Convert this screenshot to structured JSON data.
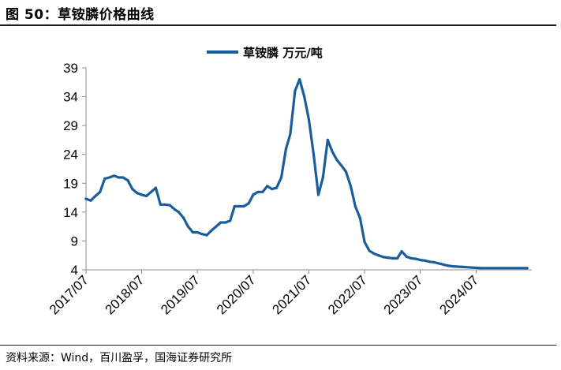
{
  "figure": {
    "title": "图 50：草铵膦价格曲线",
    "source": "资料来源：Wind，百川盈孚，国海证券研究所"
  },
  "colors": {
    "series": "#1a5d9a",
    "axis": "#8c8c8c",
    "rule": "#1b1b1b"
  },
  "chart_data": {
    "type": "line",
    "title": "",
    "xlabel": "",
    "ylabel": "",
    "ylim": [
      4,
      39
    ],
    "yticks": [
      4,
      9,
      14,
      19,
      24,
      29,
      34,
      39
    ],
    "xlim": [
      "2017-07-01",
      "2025-07-01"
    ],
    "xticks": [
      "2017/07",
      "2018/07",
      "2019/07",
      "2020/07",
      "2021/07",
      "2022/07",
      "2023/07",
      "2024/07"
    ],
    "grid": false,
    "legend_position": "top-center",
    "series": [
      {
        "name": "草铵膦 万元/吨",
        "x": [
          "2017-07-01",
          "2017-08-01",
          "2017-09-01",
          "2017-10-01",
          "2017-11-01",
          "2017-12-01",
          "2018-01-01",
          "2018-02-01",
          "2018-03-01",
          "2018-04-01",
          "2018-05-01",
          "2018-06-01",
          "2018-07-01",
          "2018-08-01",
          "2018-09-01",
          "2018-10-01",
          "2018-11-01",
          "2018-12-01",
          "2019-01-01",
          "2019-02-01",
          "2019-03-01",
          "2019-04-01",
          "2019-05-01",
          "2019-06-01",
          "2019-07-01",
          "2019-08-01",
          "2019-09-01",
          "2019-10-01",
          "2019-11-01",
          "2019-12-01",
          "2020-01-01",
          "2020-02-01",
          "2020-03-01",
          "2020-04-01",
          "2020-05-01",
          "2020-06-01",
          "2020-07-01",
          "2020-08-01",
          "2020-09-01",
          "2020-10-01",
          "2020-11-01",
          "2020-12-01",
          "2021-01-01",
          "2021-02-01",
          "2021-03-01",
          "2021-04-01",
          "2021-05-01",
          "2021-06-01",
          "2021-07-01",
          "2021-08-01",
          "2021-09-01",
          "2021-10-01",
          "2021-11-01",
          "2021-12-01",
          "2022-01-01",
          "2022-02-01",
          "2022-03-01",
          "2022-04-01",
          "2022-05-01",
          "2022-06-01",
          "2022-07-01",
          "2022-08-01",
          "2022-09-01",
          "2022-10-01",
          "2022-11-01",
          "2022-12-01",
          "2023-01-01",
          "2023-02-01",
          "2023-03-01",
          "2023-04-01",
          "2023-05-01",
          "2023-06-01",
          "2023-07-01",
          "2023-08-01",
          "2023-09-01",
          "2023-10-01",
          "2023-11-01",
          "2023-12-01",
          "2024-01-01",
          "2024-02-01",
          "2024-04-01",
          "2024-06-01",
          "2024-08-01",
          "2024-10-01",
          "2024-12-01",
          "2025-02-01",
          "2025-04-01",
          "2025-06-01"
        ],
        "values": [
          16.3,
          16.0,
          16.8,
          17.5,
          19.8,
          20.0,
          20.3,
          20.0,
          20.0,
          19.5,
          18.0,
          17.3,
          17.0,
          16.8,
          17.5,
          18.2,
          15.3,
          15.3,
          15.2,
          14.5,
          14.0,
          13.0,
          11.5,
          10.5,
          10.5,
          10.2,
          10.0,
          10.8,
          11.5,
          12.2,
          12.2,
          12.5,
          15.0,
          15.0,
          15.0,
          15.5,
          17.0,
          17.5,
          17.5,
          18.5,
          18.0,
          18.2,
          20.0,
          25.0,
          27.5,
          35.0,
          37.0,
          34.0,
          30.0,
          24.0,
          17.0,
          20.0,
          26.5,
          24.5,
          23.0,
          22.0,
          21.0,
          18.5,
          15.0,
          13.0,
          8.8,
          7.3,
          6.8,
          6.5,
          6.2,
          6.1,
          6.0,
          6.0,
          7.2,
          6.3,
          6.0,
          5.9,
          5.7,
          5.6,
          5.4,
          5.3,
          5.1,
          4.9,
          4.7,
          4.6,
          4.5,
          4.4,
          4.3,
          4.3,
          4.3,
          4.3,
          4.3,
          4.3
        ]
      }
    ]
  }
}
